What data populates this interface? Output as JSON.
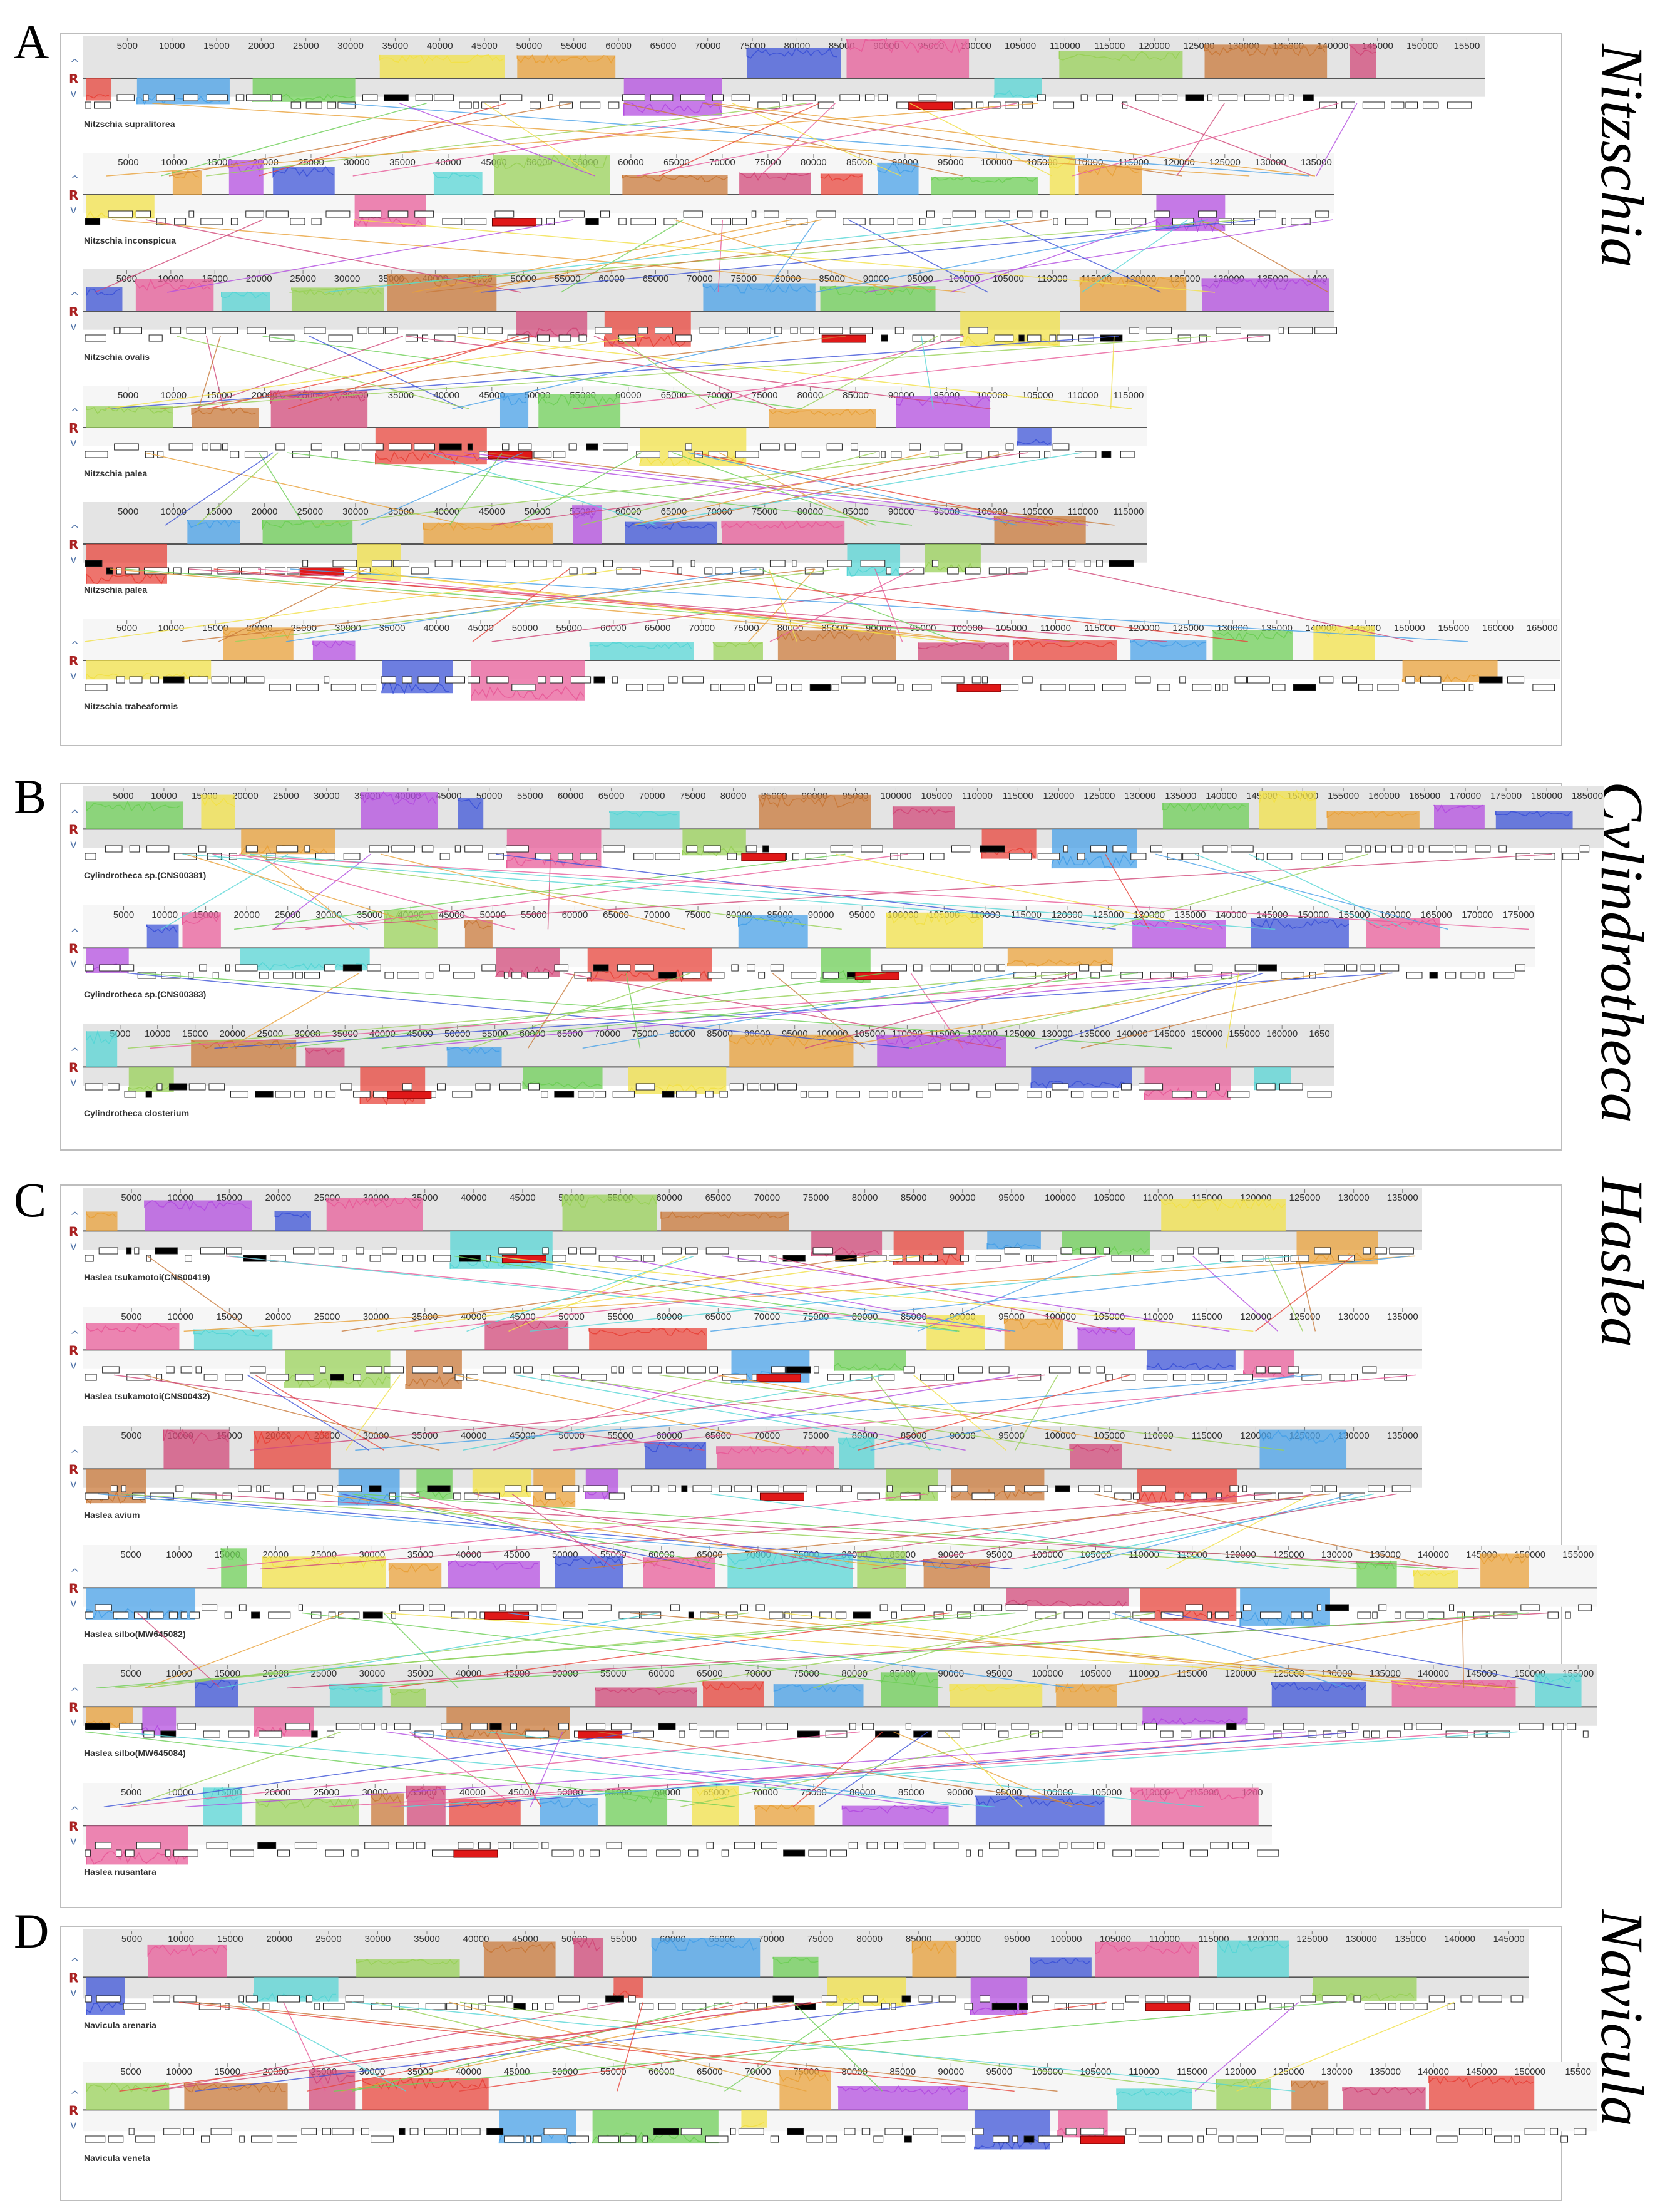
{
  "panels": [
    {
      "letter": "A",
      "genus": "Nitzschia",
      "tracks": [
        {
          "label": "Nitzschia supralitorea",
          "ticks": [
            "5000",
            "10000",
            "15000",
            "20000",
            "25000",
            "30000",
            "35000",
            "40000",
            "45000",
            "50000",
            "55000",
            "60000",
            "65000",
            "70000",
            "75000",
            "80000",
            "85000",
            "90000",
            "95000",
            "100000",
            "105000",
            "110000",
            "115000",
            "120000",
            "125000",
            "130000",
            "135000",
            "140000",
            "145000",
            "150000",
            "15500"
          ]
        },
        {
          "label": "Nitzschia inconspicua",
          "ticks": [
            "5000",
            "10000",
            "15000",
            "20000",
            "25000",
            "30000",
            "35000",
            "40000",
            "45000",
            "50000",
            "55000",
            "60000",
            "65000",
            "70000",
            "75000",
            "80000",
            "85000",
            "90000",
            "95000",
            "100000",
            "105000",
            "110000",
            "115000",
            "120000",
            "125000",
            "130000",
            "135000"
          ]
        },
        {
          "label": "Nitzschia ovalis",
          "ticks": [
            "5000",
            "10000",
            "15000",
            "20000",
            "25000",
            "30000",
            "35000",
            "40000",
            "45000",
            "50000",
            "55000",
            "60000",
            "65000",
            "70000",
            "75000",
            "80000",
            "85000",
            "90000",
            "95000",
            "100000",
            "105000",
            "110000",
            "115000",
            "120000",
            "125000",
            "130000",
            "135000",
            "1400"
          ]
        },
        {
          "label": "Nitzschia palea",
          "ticks": [
            "5000",
            "10000",
            "15000",
            "20000",
            "25000",
            "30000",
            "35000",
            "40000",
            "45000",
            "50000",
            "55000",
            "60000",
            "65000",
            "70000",
            "75000",
            "80000",
            "85000",
            "90000",
            "95000",
            "100000",
            "105000",
            "110000",
            "115000"
          ]
        },
        {
          "label": "Nitzschia palea",
          "ticks": [
            "5000",
            "10000",
            "15000",
            "20000",
            "25000",
            "30000",
            "35000",
            "40000",
            "45000",
            "50000",
            "55000",
            "60000",
            "65000",
            "70000",
            "75000",
            "80000",
            "85000",
            "90000",
            "95000",
            "100000",
            "105000",
            "110000",
            "115000"
          ]
        },
        {
          "label": "Nitzschia traheaformis",
          "ticks": [
            "5000",
            "10000",
            "15000",
            "20000",
            "25000",
            "30000",
            "35000",
            "40000",
            "45000",
            "50000",
            "55000",
            "60000",
            "65000",
            "70000",
            "75000",
            "80000",
            "85000",
            "90000",
            "95000",
            "100000",
            "105000",
            "110000",
            "115000",
            "120000",
            "125000",
            "130000",
            "135000",
            "140000",
            "145000",
            "150000",
            "155000",
            "160000",
            "165000"
          ]
        }
      ]
    },
    {
      "letter": "B",
      "genus": "Cylindrotheca",
      "tracks": [
        {
          "label": "Cylindrotheca sp.(CNS00381)",
          "ticks": [
            "5000",
            "10000",
            "15000",
            "20000",
            "25000",
            "30000",
            "35000",
            "40000",
            "45000",
            "50000",
            "55000",
            "60000",
            "65000",
            "70000",
            "75000",
            "80000",
            "85000",
            "90000",
            "95000",
            "100000",
            "105000",
            "110000",
            "115000",
            "120000",
            "125000",
            "130000",
            "135000",
            "140000",
            "145000",
            "150000",
            "155000",
            "160000",
            "165000",
            "170000",
            "175000",
            "180000",
            "185000"
          ]
        },
        {
          "label": "Cylindrotheca sp.(CNS00383)",
          "ticks": [
            "5000",
            "10000",
            "15000",
            "20000",
            "25000",
            "30000",
            "35000",
            "40000",
            "45000",
            "50000",
            "55000",
            "60000",
            "65000",
            "70000",
            "75000",
            "80000",
            "85000",
            "90000",
            "95000",
            "100000",
            "105000",
            "110000",
            "115000",
            "120000",
            "125000",
            "130000",
            "135000",
            "140000",
            "145000",
            "150000",
            "155000",
            "160000",
            "165000",
            "170000",
            "175000"
          ]
        },
        {
          "label": "Cylindrotheca closterium",
          "ticks": [
            "5000",
            "10000",
            "15000",
            "20000",
            "25000",
            "30000",
            "35000",
            "40000",
            "45000",
            "50000",
            "55000",
            "60000",
            "65000",
            "70000",
            "75000",
            "80000",
            "85000",
            "90000",
            "95000",
            "100000",
            "105000",
            "110000",
            "115000",
            "120000",
            "125000",
            "130000",
            "135000",
            "140000",
            "145000",
            "150000",
            "155000",
            "160000",
            "1650"
          ]
        }
      ]
    },
    {
      "letter": "C",
      "genus": "Haslea",
      "tracks": [
        {
          "label": "Haslea tsukamotoi(CNS00419)",
          "ticks": [
            "5000",
            "10000",
            "15000",
            "20000",
            "25000",
            "30000",
            "35000",
            "40000",
            "45000",
            "50000",
            "55000",
            "60000",
            "65000",
            "70000",
            "75000",
            "80000",
            "85000",
            "90000",
            "95000",
            "100000",
            "105000",
            "110000",
            "115000",
            "120000",
            "125000",
            "130000",
            "135000"
          ]
        },
        {
          "label": "Haslea tsukamotoi(CNS00432)",
          "ticks": [
            "5000",
            "10000",
            "15000",
            "20000",
            "25000",
            "30000",
            "35000",
            "40000",
            "45000",
            "50000",
            "55000",
            "60000",
            "65000",
            "70000",
            "75000",
            "80000",
            "85000",
            "90000",
            "95000",
            "100000",
            "105000",
            "110000",
            "115000",
            "120000",
            "125000",
            "130000",
            "135000"
          ]
        },
        {
          "label": "Haslea avium",
          "ticks": [
            "5000",
            "10000",
            "15000",
            "20000",
            "25000",
            "30000",
            "35000",
            "40000",
            "45000",
            "50000",
            "55000",
            "60000",
            "65000",
            "70000",
            "75000",
            "80000",
            "85000",
            "90000",
            "95000",
            "100000",
            "105000",
            "110000",
            "115000",
            "120000",
            "125000",
            "130000",
            "135000"
          ]
        },
        {
          "label": "Haslea silbo(MW645082)",
          "ticks": [
            "5000",
            "10000",
            "15000",
            "20000",
            "25000",
            "30000",
            "35000",
            "40000",
            "45000",
            "50000",
            "55000",
            "60000",
            "65000",
            "70000",
            "75000",
            "80000",
            "85000",
            "90000",
            "95000",
            "100000",
            "105000",
            "110000",
            "115000",
            "120000",
            "125000",
            "130000",
            "135000",
            "140000",
            "145000",
            "150000",
            "155000"
          ]
        },
        {
          "label": "Haslea silbo(MW645084)",
          "ticks": [
            "5000",
            "10000",
            "15000",
            "20000",
            "25000",
            "30000",
            "35000",
            "40000",
            "45000",
            "50000",
            "55000",
            "60000",
            "65000",
            "70000",
            "75000",
            "80000",
            "85000",
            "90000",
            "95000",
            "100000",
            "105000",
            "110000",
            "115000",
            "120000",
            "125000",
            "130000",
            "135000",
            "140000",
            "145000",
            "150000",
            "155000"
          ]
        },
        {
          "label": "Haslea nusantara",
          "ticks": [
            "5000",
            "10000",
            "15000",
            "20000",
            "25000",
            "30000",
            "35000",
            "40000",
            "45000",
            "50000",
            "55000",
            "60000",
            "65000",
            "70000",
            "75000",
            "80000",
            "85000",
            "90000",
            "95000",
            "100000",
            "105000",
            "110000",
            "115000",
            "1200"
          ]
        }
      ]
    },
    {
      "letter": "D",
      "genus": "Navicula",
      "tracks": [
        {
          "label": "Navicula arenaria",
          "ticks": [
            "5000",
            "10000",
            "15000",
            "20000",
            "25000",
            "30000",
            "35000",
            "40000",
            "45000",
            "50000",
            "55000",
            "60000",
            "65000",
            "70000",
            "75000",
            "80000",
            "85000",
            "90000",
            "95000",
            "100000",
            "105000",
            "110000",
            "115000",
            "120000",
            "125000",
            "130000",
            "135000",
            "140000",
            "145000"
          ]
        },
        {
          "label": "Navicula veneta",
          "ticks": [
            "5000",
            "10000",
            "15000",
            "20000",
            "25000",
            "30000",
            "35000",
            "40000",
            "45000",
            "50000",
            "55000",
            "60000",
            "65000",
            "70000",
            "75000",
            "80000",
            "85000",
            "90000",
            "95000",
            "100000",
            "105000",
            "110000",
            "115000",
            "120000",
            "125000",
            "130000",
            "135000",
            "140000",
            "145000",
            "150000",
            "15500"
          ]
        }
      ]
    }
  ],
  "block_colors": [
    "#e8453c",
    "#4aa2e8",
    "#6fcf58",
    "#f2e14a",
    "#e9a23b",
    "#b44fe0",
    "#3f55d8",
    "#e85d9a",
    "#58d6d6",
    "#9ad15a",
    "#c97a3b",
    "#d14a7a"
  ],
  "control_glyphs": {
    "up": "^",
    "r": "R",
    "down": "v"
  }
}
